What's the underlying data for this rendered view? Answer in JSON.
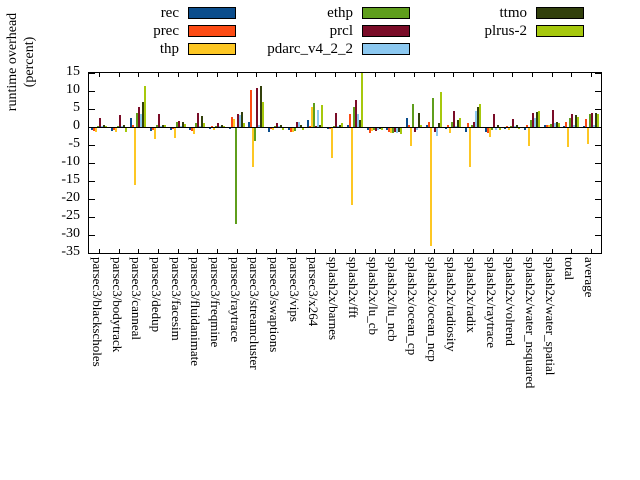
{
  "chart_data": {
    "type": "bar",
    "title": "",
    "ylabel": "runtime overhead (percent)",
    "ylabel_line1": "runtime overhead",
    "ylabel_line2": "(percent)",
    "ylim": [
      -35,
      15
    ],
    "ytick_step": 5,
    "yticks": [
      15,
      10,
      5,
      0,
      -5,
      -10,
      -15,
      -20,
      -25,
      -30,
      -35
    ],
    "grid": false,
    "legend_position": "top-center, 3 columns",
    "legend_columns": [
      [
        "rec",
        "prec",
        "thp"
      ],
      [
        "ethp",
        "prcl",
        "pdarc_v4_2_2"
      ],
      [
        "ttmo",
        "plrus-2"
      ]
    ],
    "categories": [
      "parsec3/blackscholes",
      "parsec3/bodytrack",
      "parsec3/canneal",
      "parsec3/dedup",
      "parsec3/facesim",
      "parsec3/fluidanimate",
      "parsec3/freqmine",
      "parsec3/raytrace",
      "parsec3/streamcluster",
      "parsec3/swaptions",
      "parsec3/vips",
      "parsec3/x264",
      "splash2x/barnes",
      "splash2x/fft",
      "splash2x/lu_cb",
      "splash2x/lu_ncb",
      "splash2x/ocean_cp",
      "splash2x/ocean_ncp",
      "splash2x/radiosity",
      "splash2x/radix",
      "splash2x/raytrace",
      "splash2x/volrend",
      "splash2x/water_nsquared",
      "splash2x/water_spatial",
      "total",
      "average"
    ],
    "series": [
      {
        "name": "rec",
        "color": "#0b4d8c",
        "values": [
          -0.6,
          -0.8,
          2.5,
          -0.8,
          -0.5,
          -0.5,
          -0.3,
          -0.3,
          1.5,
          -1.1,
          -0.5,
          2.0,
          -0.3,
          0.5,
          -0.5,
          -0.5,
          2.4,
          0.5,
          -0.3,
          -1.0,
          -1.0,
          -0.3,
          -0.5,
          0.5,
          0.3,
          0.3
        ]
      },
      {
        "name": "prec",
        "color": "#fc4b14",
        "values": [
          -0.7,
          -0.5,
          0.5,
          -0.5,
          -0.3,
          -0.8,
          0.3,
          2.7,
          10.4,
          -0.3,
          -1.0,
          0.3,
          -0.3,
          3.5,
          -1.3,
          -1.0,
          0.5,
          1.5,
          0.5,
          1.0,
          -1.5,
          0.3,
          0.5,
          0.5,
          1.4,
          2.2
        ]
      },
      {
        "name": "thp",
        "color": "#fdc724",
        "values": [
          -1.0,
          -1.2,
          -15.8,
          -3.1,
          -2.7,
          -1.6,
          -0.5,
          2.2,
          -10.7,
          -0.5,
          -1.0,
          5.5,
          -8.2,
          -21.5,
          -0.8,
          -1.5,
          -5.0,
          -32.7,
          -1.5,
          -10.7,
          -2.5,
          -0.5,
          -5.1,
          0.5,
          -5.2,
          -4.5
        ]
      },
      {
        "name": "ethp",
        "color": "#5f9e1c",
        "values": [
          0.3,
          0.3,
          4.0,
          0.5,
          1.5,
          1.0,
          0.3,
          -26.6,
          -3.5,
          0.3,
          -0.8,
          6.8,
          0.3,
          5.5,
          -0.5,
          -1.5,
          6.5,
          8.0,
          1.5,
          0.5,
          -0.5,
          0.3,
          2.0,
          0.8,
          2.5,
          3.5
        ]
      },
      {
        "name": "prcl",
        "color": "#7a0c28",
        "values": [
          2.5,
          3.2,
          5.5,
          3.7,
          1.8,
          4.0,
          1.0,
          3.7,
          10.9,
          1.0,
          1.5,
          0.3,
          4.0,
          7.5,
          -0.8,
          -1.0,
          -1.0,
          -1.0,
          4.5,
          1.5,
          3.5,
          2.1,
          4.0,
          4.8,
          3.6,
          4.0
        ]
      },
      {
        "name": "pdarc_v4_2_2",
        "color": "#8cc8f0",
        "values": [
          0.3,
          0.3,
          3.5,
          0.3,
          0.3,
          0.3,
          0.2,
          3.3,
          0.5,
          0.3,
          1.5,
          4.7,
          0.3,
          3.5,
          -0.5,
          -1.5,
          -0.5,
          -2.2,
          0.3,
          4.4,
          -0.5,
          0.3,
          2.5,
          1.0,
          0.5,
          0.5
        ]
      },
      {
        "name": "ttmo",
        "color": "#32400c",
        "values": [
          0.5,
          0.5,
          7.0,
          0.5,
          1.5,
          3.0,
          0.5,
          4.2,
          11.5,
          0.5,
          0.5,
          0.5,
          0.5,
          2.0,
          -0.3,
          -1.0,
          4.0,
          1.0,
          2.0,
          5.5,
          0.5,
          0.5,
          4.2,
          1.5,
          3.3,
          3.8
        ]
      },
      {
        "name": "plrus-2",
        "color": "#a6c80d",
        "values": [
          0.4,
          -1.0,
          11.3,
          0.5,
          0.8,
          1.0,
          0.3,
          1.0,
          7.0,
          -0.5,
          -0.5,
          6.2,
          1.0,
          16.5,
          -0.5,
          -1.8,
          0.5,
          9.7,
          2.4,
          6.5,
          -0.5,
          -0.3,
          4.5,
          1.2,
          2.8,
          3.5
        ]
      }
    ]
  }
}
